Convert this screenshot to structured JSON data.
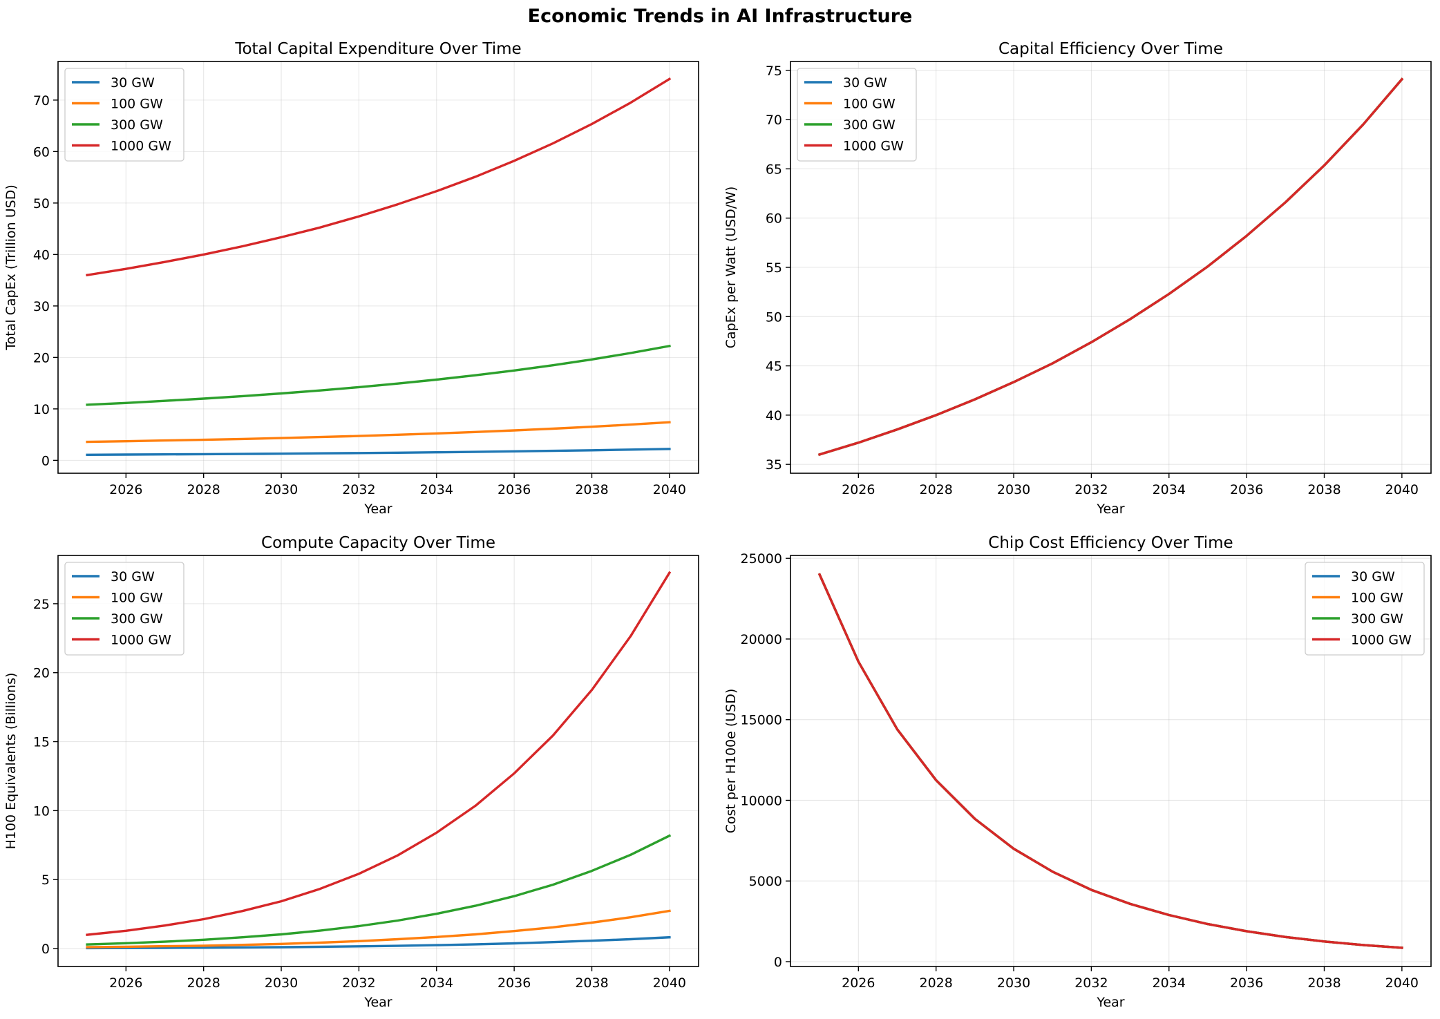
{
  "figure": {
    "title": "Economic Trends in AI Infrastructure"
  },
  "chart_data": [
    {
      "type": "line",
      "title": "Total Capital Expenditure Over Time",
      "xlabel": "Year",
      "ylabel": "Total CapEx (Trillion USD)",
      "x": [
        2025,
        2026,
        2027,
        2028,
        2029,
        2030,
        2031,
        2032,
        2033,
        2034,
        2035,
        2036,
        2037,
        2038,
        2039,
        2040
      ],
      "xlim": [
        2024.25,
        2040.75
      ],
      "ylim": [
        -2.5,
        77.5
      ],
      "xticks": [
        2026,
        2028,
        2030,
        2032,
        2034,
        2036,
        2038,
        2040
      ],
      "yticks": [
        0,
        10,
        20,
        30,
        40,
        50,
        60,
        70
      ],
      "grid": true,
      "legend": "upper left",
      "series": [
        {
          "name": "30 GW",
          "color": "#1f77b4",
          "values": [
            1.08,
            1.12,
            1.16,
            1.2,
            1.25,
            1.3,
            1.36,
            1.42,
            1.49,
            1.57,
            1.65,
            1.75,
            1.85,
            1.96,
            2.09,
            2.22
          ]
        },
        {
          "name": "100 GW",
          "color": "#ff7f0e",
          "values": [
            3.6,
            3.72,
            3.86,
            4.0,
            4.16,
            4.33,
            4.53,
            4.74,
            4.97,
            5.23,
            5.51,
            5.82,
            6.16,
            6.54,
            6.95,
            7.41
          ]
        },
        {
          "name": "300 GW",
          "color": "#2ca02c",
          "values": [
            10.8,
            11.15,
            11.57,
            12.0,
            12.48,
            13.0,
            13.58,
            14.22,
            14.92,
            15.69,
            16.53,
            17.46,
            18.48,
            19.61,
            20.85,
            22.23
          ]
        },
        {
          "name": "1000 GW",
          "color": "#d62728",
          "values": [
            36.0,
            37.2,
            38.55,
            40.0,
            41.6,
            43.35,
            45.25,
            47.4,
            49.75,
            52.3,
            55.1,
            58.2,
            61.6,
            65.35,
            69.5,
            74.1
          ]
        }
      ]
    },
    {
      "type": "line",
      "title": "Capital Efficiency Over Time",
      "xlabel": "Year",
      "ylabel": "CapEx per Watt (USD/W)",
      "x": [
        2025,
        2026,
        2027,
        2028,
        2029,
        2030,
        2031,
        2032,
        2033,
        2034,
        2035,
        2036,
        2037,
        2038,
        2039,
        2040
      ],
      "xlim": [
        2024.25,
        2040.75
      ],
      "ylim": [
        34.1,
        75.9
      ],
      "xticks": [
        2026,
        2028,
        2030,
        2032,
        2034,
        2036,
        2038,
        2040
      ],
      "yticks": [
        35,
        40,
        45,
        50,
        55,
        60,
        65,
        70,
        75
      ],
      "grid": true,
      "legend": "upper left",
      "series": [
        {
          "name": "30 GW",
          "color": "#1f77b4",
          "values": [
            36.0,
            37.2,
            38.55,
            40.0,
            41.6,
            43.35,
            45.25,
            47.4,
            49.75,
            52.3,
            55.1,
            58.2,
            61.6,
            65.35,
            69.5,
            74.1
          ]
        },
        {
          "name": "100 GW",
          "color": "#ff7f0e",
          "values": [
            36.0,
            37.2,
            38.55,
            40.0,
            41.6,
            43.35,
            45.25,
            47.4,
            49.75,
            52.3,
            55.1,
            58.2,
            61.6,
            65.35,
            69.5,
            74.1
          ]
        },
        {
          "name": "300 GW",
          "color": "#2ca02c",
          "values": [
            36.0,
            37.2,
            38.55,
            40.0,
            41.6,
            43.35,
            45.25,
            47.4,
            49.75,
            52.3,
            55.1,
            58.2,
            61.6,
            65.35,
            69.5,
            74.1
          ]
        },
        {
          "name": "1000 GW",
          "color": "#d62728",
          "values": [
            36.0,
            37.2,
            38.55,
            40.0,
            41.6,
            43.35,
            45.25,
            47.4,
            49.75,
            52.3,
            55.1,
            58.2,
            61.6,
            65.35,
            69.5,
            74.1
          ]
        }
      ]
    },
    {
      "type": "line",
      "title": "Compute Capacity Over Time",
      "xlabel": "Year",
      "ylabel": "H100 Equivalents (Billions)",
      "x": [
        2025,
        2026,
        2027,
        2028,
        2029,
        2030,
        2031,
        2032,
        2033,
        2034,
        2035,
        2036,
        2037,
        2038,
        2039,
        2040
      ],
      "xlim": [
        2024.25,
        2040.75
      ],
      "ylim": [
        -1.3,
        28.5
      ],
      "xticks": [
        2026,
        2028,
        2030,
        2032,
        2034,
        2036,
        2038,
        2040
      ],
      "yticks": [
        0,
        5,
        10,
        15,
        20,
        25
      ],
      "grid": true,
      "legend": "upper left",
      "series": [
        {
          "name": "30 GW",
          "color": "#1f77b4",
          "values": [
            0.03,
            0.04,
            0.05,
            0.06,
            0.08,
            0.1,
            0.13,
            0.16,
            0.2,
            0.25,
            0.31,
            0.38,
            0.47,
            0.57,
            0.68,
            0.82
          ]
        },
        {
          "name": "100 GW",
          "color": "#ff7f0e",
          "values": [
            0.1,
            0.13,
            0.17,
            0.21,
            0.27,
            0.34,
            0.43,
            0.54,
            0.68,
            0.84,
            1.03,
            1.27,
            1.54,
            1.88,
            2.27,
            2.73
          ]
        },
        {
          "name": "300 GW",
          "color": "#2ca02c",
          "values": [
            0.3,
            0.39,
            0.5,
            0.64,
            0.82,
            1.03,
            1.3,
            1.63,
            2.03,
            2.52,
            3.1,
            3.8,
            4.63,
            5.63,
            6.8,
            8.18
          ]
        },
        {
          "name": "1000 GW",
          "color": "#d62728",
          "values": [
            1.0,
            1.29,
            1.67,
            2.13,
            2.72,
            3.43,
            4.33,
            5.42,
            6.76,
            8.4,
            10.35,
            12.7,
            15.45,
            18.75,
            22.65,
            27.25
          ]
        }
      ]
    },
    {
      "type": "line",
      "title": "Chip Cost Efficiency Over Time",
      "xlabel": "Year",
      "ylabel": "Cost per H100e (USD)",
      "x": [
        2025,
        2026,
        2027,
        2028,
        2029,
        2030,
        2031,
        2032,
        2033,
        2034,
        2035,
        2036,
        2037,
        2038,
        2039,
        2040
      ],
      "xlim": [
        2024.25,
        2040.75
      ],
      "ylim": [
        -300,
        25180
      ],
      "xticks": [
        2026,
        2028,
        2030,
        2032,
        2034,
        2036,
        2038,
        2040
      ],
      "yticks": [
        0,
        5000,
        10000,
        15000,
        20000,
        25000
      ],
      "grid": true,
      "legend": "upper right",
      "series": [
        {
          "name": "30 GW",
          "color": "#1f77b4",
          "values": [
            24000,
            18600,
            14400,
            11250,
            8850,
            7000,
            5580,
            4450,
            3580,
            2890,
            2330,
            1890,
            1530,
            1250,
            1030,
            860
          ]
        },
        {
          "name": "100 GW",
          "color": "#ff7f0e",
          "values": [
            24000,
            18600,
            14400,
            11250,
            8850,
            7000,
            5580,
            4450,
            3580,
            2890,
            2330,
            1890,
            1530,
            1250,
            1030,
            860
          ]
        },
        {
          "name": "300 GW",
          "color": "#2ca02c",
          "values": [
            24000,
            18600,
            14400,
            11250,
            8850,
            7000,
            5580,
            4450,
            3580,
            2890,
            2330,
            1890,
            1530,
            1250,
            1030,
            860
          ]
        },
        {
          "name": "1000 GW",
          "color": "#d62728",
          "values": [
            24000,
            18600,
            14400,
            11250,
            8850,
            7000,
            5580,
            4450,
            3580,
            2890,
            2330,
            1890,
            1530,
            1250,
            1030,
            860
          ]
        }
      ]
    }
  ]
}
